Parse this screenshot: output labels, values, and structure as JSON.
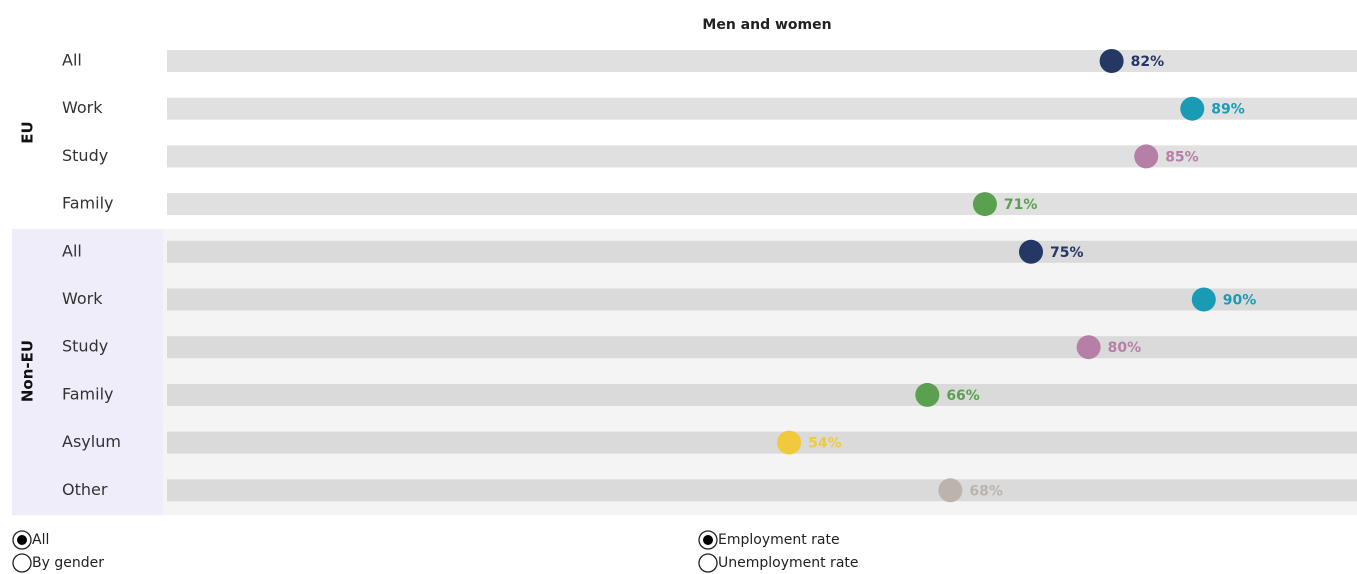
{
  "chart_data": {
    "type": "dot",
    "title": "Men and women",
    "groups": [
      {
        "name": "EU",
        "categories": [
          "All",
          "Work",
          "Study",
          "Family"
        ],
        "values": [
          82,
          89,
          85,
          71
        ],
        "value_labels": [
          "82%",
          "89%",
          "85%",
          "71%"
        ],
        "colors": [
          "#253764",
          "#1a9bb5",
          "#b57fa8",
          "#5aa050"
        ]
      },
      {
        "name": "Non-EU",
        "categories": [
          "All",
          "Work",
          "Study",
          "Family",
          "Asylum",
          "Other"
        ],
        "values": [
          75,
          90,
          80,
          66,
          54,
          68
        ],
        "value_labels": [
          "75%",
          "90%",
          "80%",
          "66%",
          "54%",
          "68%"
        ],
        "colors": [
          "#253764",
          "#1a9bb5",
          "#b57fa8",
          "#5aa050",
          "#f0c93c",
          "#bcb4ac"
        ]
      }
    ]
  },
  "controls": [
    {
      "options": [
        "All",
        "By gender"
      ],
      "selected": 0
    },
    {
      "options": [
        "Employment rate",
        "Unemployment rate"
      ],
      "selected": 0
    }
  ]
}
